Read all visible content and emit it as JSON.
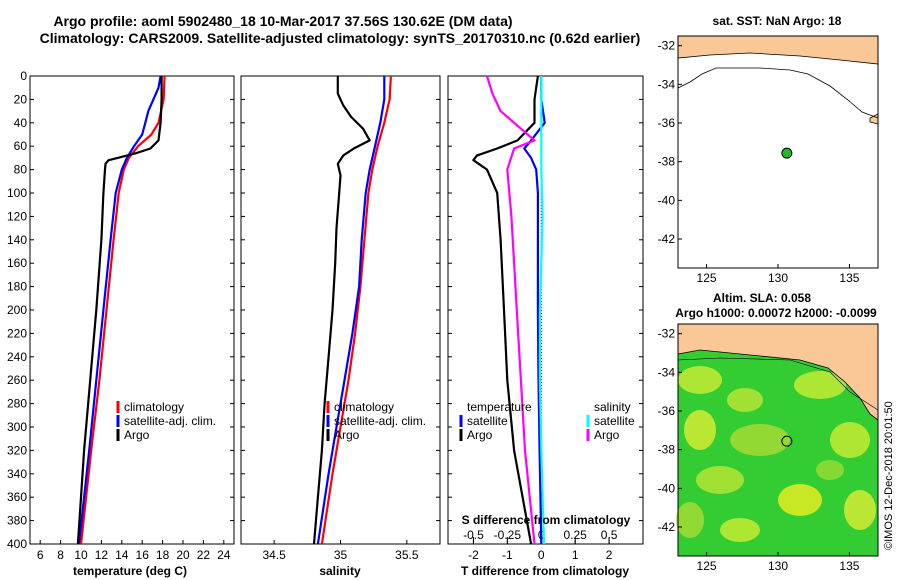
{
  "header": {
    "title_line1": "Argo profile: aoml 5902480_18 10-Mar-2017 37.56S 130.62E (DM data)",
    "title_line2": "Climatology: CARS2009. Satellite-adjusted climatology: synTS_20170310.nc (0.62d earlier)"
  },
  "colors": {
    "climatology": "#ff0000",
    "satellite_adj": "#0000ff",
    "argo": "#000000",
    "sal_diff_satellite": "#00ffff",
    "sal_diff_argo": "#ff00ff",
    "land": "#f9c896",
    "sla_field": "#33cc33"
  },
  "stamp": "©IMOS 12-Dec-2018 20:01:50",
  "chart_data": [
    {
      "type": "line",
      "name": "temperature",
      "xlabel": "temperature (deg C)",
      "xlim": [
        5,
        25
      ],
      "xticks": [
        6,
        8,
        10,
        12,
        14,
        16,
        18,
        20,
        22,
        24
      ],
      "ylim": [
        0,
        400
      ],
      "yticks": [
        0,
        20,
        40,
        60,
        80,
        100,
        120,
        140,
        160,
        180,
        200,
        220,
        240,
        260,
        280,
        300,
        320,
        340,
        360,
        380,
        400
      ],
      "y_inverted": true,
      "legend": [
        "climatology",
        "satellite-adj. clim.",
        "Argo"
      ],
      "series": [
        {
          "name": "climatology",
          "color": "#ff0000",
          "depth": [
            0,
            20,
            40,
            50,
            60,
            70,
            80,
            100,
            140,
            200,
            260,
            320,
            400
          ],
          "values": [
            18.2,
            18.1,
            17.6,
            16.9,
            15.6,
            14.7,
            14.2,
            13.7,
            13.2,
            12.5,
            11.8,
            11.0,
            10.0
          ]
        },
        {
          "name": "satellite-adj. clim.",
          "color": "#0000ff",
          "depth": [
            0,
            10,
            20,
            30,
            40,
            50,
            60,
            70,
            80,
            100,
            140,
            200,
            260,
            320,
            400
          ],
          "values": [
            17.8,
            17.6,
            17.1,
            16.6,
            16.3,
            16.0,
            15.2,
            14.5,
            14.0,
            13.4,
            12.9,
            12.2,
            11.5,
            10.8,
            9.8
          ]
        },
        {
          "name": "Argo",
          "color": "#000000",
          "depth": [
            0,
            20,
            40,
            55,
            62,
            66,
            70,
            72,
            75,
            80,
            100,
            140,
            200,
            260,
            320,
            400
          ],
          "values": [
            17.9,
            17.9,
            17.8,
            17.6,
            16.8,
            15.4,
            13.6,
            12.7,
            12.4,
            12.35,
            12.2,
            12.0,
            11.5,
            10.9,
            10.3,
            9.7
          ]
        }
      ]
    },
    {
      "type": "line",
      "name": "salinity",
      "xlabel": "salinity",
      "xlim": [
        34.25,
        35.75
      ],
      "xticks": [
        34.5,
        35,
        35.5
      ],
      "xticklabels": [
        "34.5",
        "35",
        "35.5"
      ],
      "ylim": [
        0,
        400
      ],
      "y_inverted": true,
      "legend": [
        "climatology",
        "satellite-adj. clim.",
        "Argo"
      ],
      "series": [
        {
          "name": "climatology",
          "color": "#ff0000",
          "depth": [
            0,
            20,
            40,
            60,
            80,
            100,
            140,
            180,
            220,
            260,
            300,
            340,
            400
          ],
          "values": [
            35.38,
            35.37,
            35.33,
            35.28,
            35.24,
            35.21,
            35.18,
            35.15,
            35.11,
            35.06,
            35.0,
            34.94,
            34.86
          ]
        },
        {
          "name": "satellite-adj. clim.",
          "color": "#0000ff",
          "depth": [
            0,
            20,
            40,
            60,
            80,
            100,
            140,
            180,
            220,
            260,
            300,
            340,
            400
          ],
          "values": [
            35.33,
            35.33,
            35.3,
            35.26,
            35.22,
            35.19,
            35.16,
            35.14,
            35.09,
            35.03,
            34.97,
            34.91,
            34.83
          ]
        },
        {
          "name": "Argo",
          "color": "#000000",
          "depth": [
            0,
            15,
            25,
            35,
            45,
            55,
            62,
            68,
            75,
            85,
            100,
            130,
            160,
            200,
            240,
            280,
            320,
            360,
            400
          ],
          "values": [
            34.98,
            34.98,
            35.02,
            35.08,
            35.17,
            35.22,
            35.1,
            35.02,
            34.98,
            35.0,
            34.99,
            34.97,
            34.96,
            34.94,
            34.91,
            34.88,
            34.86,
            34.83,
            34.8
          ]
        }
      ]
    },
    {
      "type": "line",
      "name": "difference",
      "xlabel": "T difference from climatology",
      "xlim": [
        -2.75,
        3.0
      ],
      "xticks": [
        -2,
        -1,
        0,
        1,
        2
      ],
      "top_axis_label": "S difference from climatology",
      "top_ticks": [
        -0.5,
        -0.25,
        0,
        0.25,
        0.5
      ],
      "top_ticklabels": [
        "-0.5",
        "-0.25",
        "0",
        "0.25",
        "0.5"
      ],
      "top_xlim": [
        -0.6875,
        0.75
      ],
      "ylim": [
        0,
        400
      ],
      "y_inverted": true,
      "legend_left_title": "temperature",
      "legend_right_title": "salinity",
      "legend": [
        "satellite",
        "Argo",
        "satellite",
        "Argo"
      ],
      "series": [
        {
          "name": "T satellite",
          "color": "#0000ff",
          "depth": [
            0,
            20,
            40,
            55,
            62,
            70,
            80,
            100,
            140,
            200,
            260,
            320,
            400
          ],
          "values": [
            0.0,
            0.0,
            0.1,
            -0.3,
            -0.5,
            -0.3,
            -0.15,
            -0.1,
            -0.1,
            -0.1,
            -0.08,
            -0.05,
            0.0
          ]
        },
        {
          "name": "T Argo",
          "color": "#000000",
          "depth": [
            0,
            20,
            40,
            55,
            62,
            68,
            72,
            80,
            100,
            140,
            200,
            260,
            320,
            400
          ],
          "values": [
            -0.1,
            -0.2,
            -0.2,
            -0.7,
            -1.3,
            -1.9,
            -2.0,
            -1.6,
            -1.3,
            -1.2,
            -1.1,
            -1.0,
            -0.8,
            -0.3
          ]
        },
        {
          "name": "S satellite",
          "color": "#00ffff",
          "depth": [
            0,
            40,
            80,
            120,
            160,
            200,
            260,
            320,
            400
          ],
          "values": [
            0.0,
            0.0,
            0.0,
            0.01,
            0.0,
            -0.01,
            -0.01,
            0.0,
            0.02
          ]
        },
        {
          "name": "S Argo",
          "color": "#ff00ff",
          "depth": [
            0,
            15,
            30,
            45,
            55,
            62,
            80,
            120,
            160,
            200,
            260,
            320,
            400
          ],
          "values": [
            -0.4,
            -0.36,
            -0.3,
            -0.15,
            -0.05,
            -0.2,
            -0.25,
            -0.22,
            -0.2,
            -0.18,
            -0.15,
            -0.12,
            -0.05
          ]
        }
      ]
    },
    {
      "type": "map",
      "name": "sst-map",
      "title": "sat. SST: NaN Argo: 18",
      "xlim": [
        123,
        137
      ],
      "ylim": [
        -43.5,
        -31.5
      ],
      "xticks": [
        125,
        130,
        135
      ],
      "yticks": [
        -32,
        -34,
        -36,
        -38,
        -40,
        -42
      ],
      "argo_position": [
        130.62,
        -37.56
      ]
    },
    {
      "type": "map",
      "name": "sla-map",
      "title_line1": "Altim. SLA: 0.058",
      "title_line2": "Argo h1000: 0.00072 h2000: -0.0099",
      "xlim": [
        123,
        137
      ],
      "ylim": [
        -43.5,
        -31.5
      ],
      "xticks": [
        125,
        130,
        135
      ],
      "yticks": [
        -32,
        -34,
        -36,
        -38,
        -40,
        -42
      ],
      "argo_position": [
        130.62,
        -37.56
      ]
    }
  ]
}
